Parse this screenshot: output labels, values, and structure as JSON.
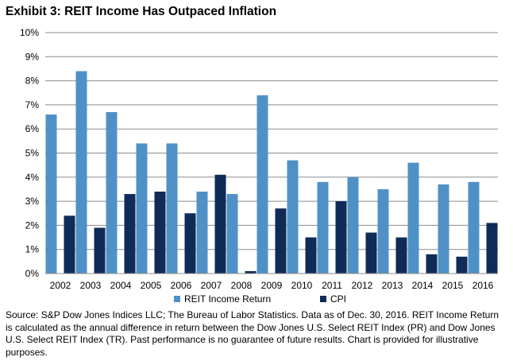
{
  "colors": {
    "reit": "#4f91c7",
    "cpi": "#0f2b57",
    "grid": "#8c8c8c"
  },
  "chart_data": {
    "type": "bar",
    "title": "Exhibit 3: REIT Income Has Outpaced Inflation",
    "categories": [
      "2002",
      "2003",
      "2004",
      "2005",
      "2006",
      "2007",
      "2008",
      "2009",
      "2010",
      "2011",
      "2012",
      "2013",
      "2014",
      "2015",
      "2016"
    ],
    "series": [
      {
        "name": "REIT Income Return",
        "values": [
          6.6,
          8.4,
          6.7,
          5.4,
          5.4,
          3.4,
          3.3,
          7.4,
          4.7,
          3.8,
          4.0,
          3.5,
          4.6,
          3.7,
          3.8
        ]
      },
      {
        "name": "CPI",
        "values": [
          2.4,
          1.9,
          3.3,
          3.4,
          2.5,
          4.1,
          0.1,
          2.7,
          1.5,
          3.0,
          1.7,
          1.5,
          0.8,
          0.7,
          2.1
        ]
      }
    ],
    "yticks": [
      "0%",
      "1%",
      "2%",
      "3%",
      "4%",
      "5%",
      "6%",
      "7%",
      "8%",
      "9%",
      "10%"
    ],
    "ylim": [
      0,
      10
    ],
    "grid": true,
    "legend": "bottom"
  },
  "source_note": "Source: S&P Dow Jones Indices LLC; The Bureau of Labor Statistics.  Data as of Dec. 30, 2016.  REIT Income Return is calculated as the annual difference in return between the Dow Jones U.S. Select REIT Index (PR) and Dow Jones U.S. Select REIT Index (TR).  Past performance is no guarantee of future results.  Chart is provided for illustrative purposes."
}
